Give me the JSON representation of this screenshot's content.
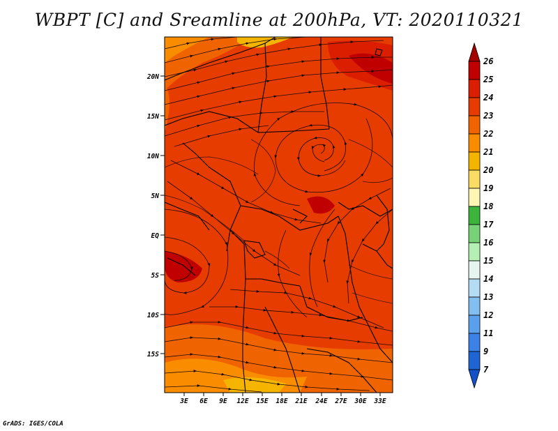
{
  "title": "WBPT [C] and Sreamline at 200hPa, VT: 2020110321",
  "credit": "GrADS: IGES/COLA",
  "map": {
    "lat_ticks": [
      "20N",
      "15N",
      "10N",
      "5N",
      "EQ",
      "5S",
      "10S",
      "15S"
    ],
    "lon_ticks": [
      "3E",
      "6E",
      "9E",
      "12E",
      "15E",
      "18E",
      "21E",
      "24E",
      "27E",
      "30E",
      "33E"
    ]
  },
  "colorbar": {
    "labels": [
      "26",
      "25",
      "24",
      "23",
      "22",
      "21",
      "20",
      "19",
      "18",
      "17",
      "16",
      "15",
      "14",
      "13",
      "12",
      "11",
      "9",
      "7"
    ],
    "colors": [
      "#a50000",
      "#c00000",
      "#dc1e00",
      "#e63c00",
      "#f06400",
      "#fa8c00",
      "#f5b400",
      "#fadc64",
      "#fff5b4",
      "#3cb43c",
      "#78d278",
      "#b4f0b4",
      "#e6f5f0",
      "#b4dcf5",
      "#82bef0",
      "#5aa0eb",
      "#3c82e6",
      "#1e64d2",
      "#1450c8"
    ]
  }
}
